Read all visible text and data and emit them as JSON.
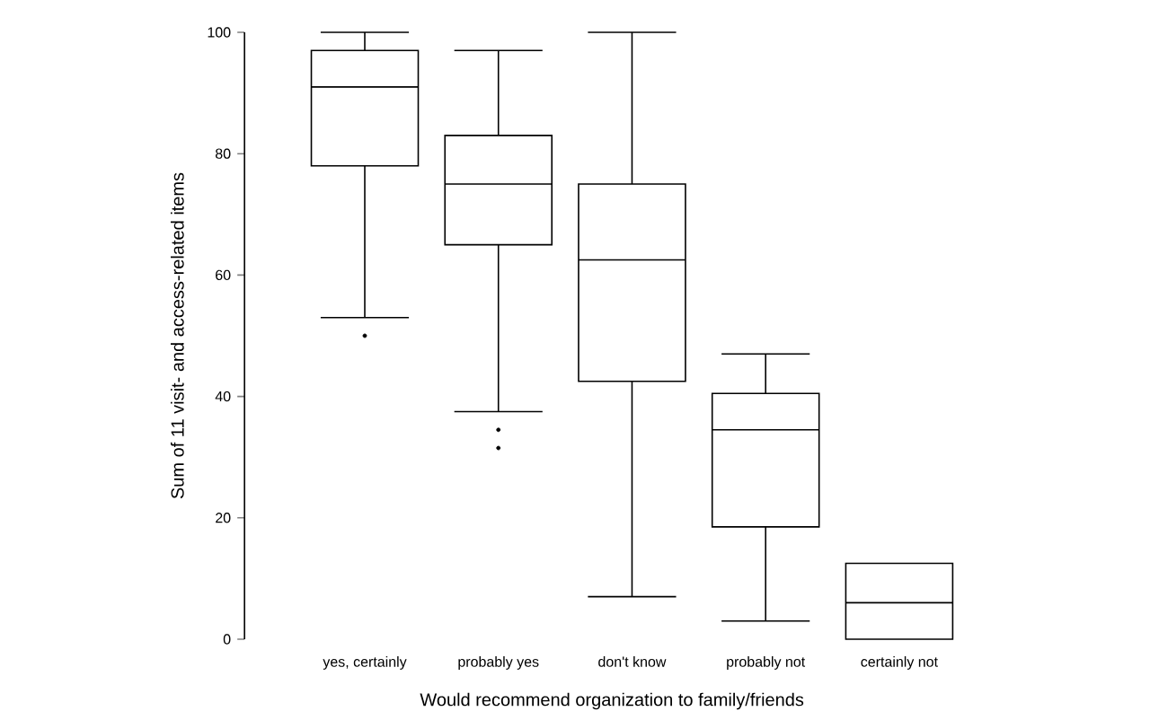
{
  "chart_data": {
    "type": "box",
    "xlabel": "Would recommend organization to family/friends",
    "ylabel": "Sum of 11 visit- and access-related items",
    "categories": [
      "yes, certainly",
      "probably yes",
      "don't know",
      "probably not",
      "certainly not"
    ],
    "color": "#000000",
    "boxes": [
      {
        "low": 53,
        "q1": 78,
        "median": 91,
        "q3": 97,
        "high": 100,
        "outliers": [
          50
        ]
      },
      {
        "low": 37.5,
        "q1": 65,
        "median": 75,
        "q3": 83,
        "high": 97,
        "outliers": [
          34.5,
          31.5
        ]
      },
      {
        "low": 7,
        "q1": 42.5,
        "median": 62.5,
        "q3": 75,
        "high": 100
      },
      {
        "low": 3,
        "q1": 18.5,
        "median": 34.5,
        "q3": 40.5,
        "high": 47
      },
      {
        "low": 0,
        "q1": 0,
        "median": 6,
        "q3": 12.5,
        "high": 12.5
      }
    ],
    "ylim": [
      0,
      100
    ],
    "yticks": [
      0,
      20,
      40,
      60,
      80,
      100
    ],
    "grid": false
  }
}
